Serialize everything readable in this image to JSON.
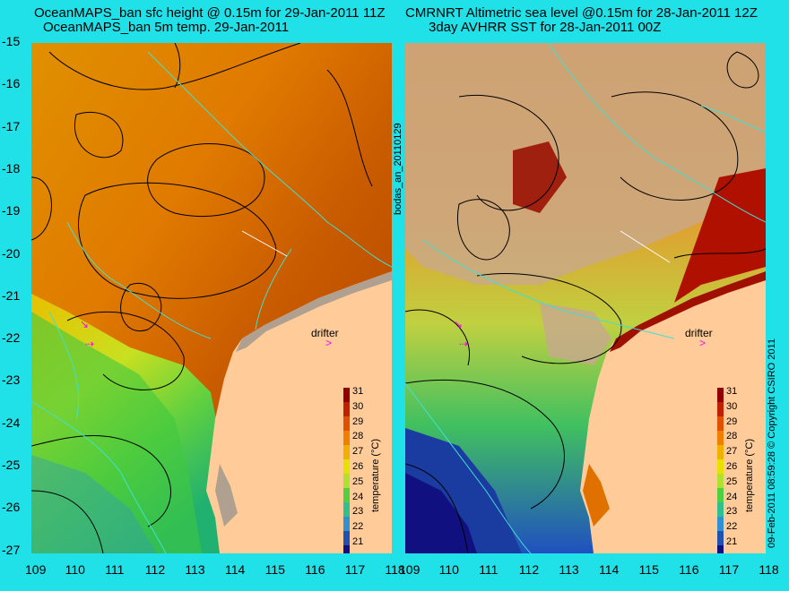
{
  "left_panel": {
    "title_line1": "OceanMAPS_ban sfc height @ 0.15m for 29-Jan-2011 11Z",
    "title_line2": "OceanMAPS_ban 5m temp. 29-Jan-2011",
    "drifter_label": "drifter"
  },
  "right_panel": {
    "title_line1": "CMRNRT Altimetric sea level  @0.15m  for 28-Jan-2011 12Z",
    "title_line2": "3day AVHRR SST for 28-Jan-2011 00Z",
    "drifter_label": "drifter"
  },
  "side_labels": {
    "left": "bodas_an_20110129",
    "right": "09-Feb-2011 08:59:28   © Copyright CSIRO 2011"
  },
  "axes": {
    "lat_ticks": [
      "-15",
      "-16",
      "-17",
      "-18",
      "-19",
      "-20",
      "-21",
      "-22",
      "-23",
      "-24",
      "-25",
      "-26",
      "-27"
    ],
    "lon_ticks": [
      "109",
      "110",
      "111",
      "112",
      "113",
      "114",
      "115",
      "116",
      "117",
      "118"
    ]
  },
  "colorbar": {
    "label": "temperature (°C)",
    "ticks": [
      "31",
      "30",
      "29",
      "28",
      "27",
      "26",
      "25",
      "24",
      "23",
      "22",
      "21"
    ],
    "colors": [
      "#900000",
      "#c02000",
      "#e05000",
      "#f07f00",
      "#f0b000",
      "#e8e000",
      "#b0e030",
      "#50d040",
      "#30c090",
      "#3090d0",
      "#2050b0",
      "#101080"
    ]
  },
  "colors": {
    "background": "#20e0e8",
    "land": "#ffcc99",
    "coast_shade": "#b0a090",
    "contour": "#000000",
    "isobath": "#40e0d0",
    "drifter_marker": "#ff00ff"
  }
}
